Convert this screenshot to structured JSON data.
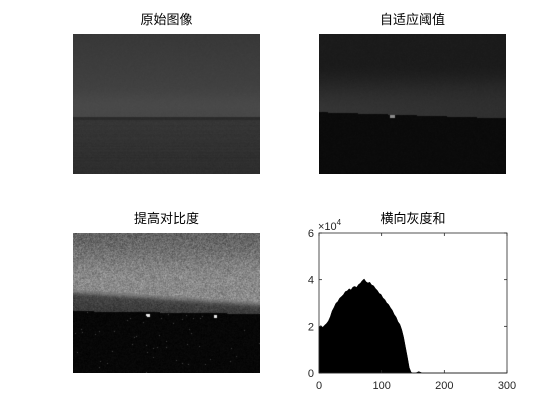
{
  "images": [
    {
      "title": "原始图像"
    },
    {
      "title": "自适应阈值"
    },
    {
      "title": "提高对比度"
    }
  ],
  "chart_data": {
    "type": "area",
    "title": "横向灰度和",
    "xlabel": "",
    "ylabel": "",
    "xlim": [
      0,
      300
    ],
    "ylim": [
      0,
      60000
    ],
    "xticks": [
      0,
      100,
      200,
      300
    ],
    "xtick_labels": [
      "0",
      "100",
      "200",
      "300"
    ],
    "yticks": [
      0,
      20000,
      40000,
      60000
    ],
    "ytick_labels": [
      "0",
      "2",
      "4",
      "6"
    ],
    "y_exponent": {
      "base": "×10",
      "power": "4"
    },
    "grid": false,
    "legend": "none",
    "fill_color": "#000000",
    "x": [
      0,
      3,
      6,
      9,
      12,
      15,
      18,
      21,
      24,
      27,
      30,
      33,
      36,
      39,
      42,
      45,
      48,
      51,
      54,
      57,
      60,
      63,
      66,
      69,
      72,
      75,
      78,
      81,
      84,
      87,
      90,
      93,
      96,
      99,
      102,
      105,
      108,
      111,
      114,
      117,
      120,
      123,
      126,
      129,
      132,
      135,
      138,
      141,
      144,
      147,
      150,
      153,
      156,
      159,
      162,
      165,
      300
    ],
    "y": [
      19800,
      20300,
      19600,
      20500,
      21200,
      22300,
      24100,
      26600,
      28100,
      29900,
      30600,
      32100,
      32800,
      33600,
      34900,
      35200,
      36100,
      35600,
      36800,
      37100,
      36700,
      37900,
      38500,
      39600,
      40300,
      39100,
      38600,
      38900,
      37700,
      37400,
      36200,
      35400,
      34100,
      33700,
      32200,
      31500,
      30100,
      29400,
      28000,
      26900,
      25100,
      24000,
      22000,
      20900,
      18600,
      15400,
      11100,
      6900,
      2300,
      300,
      0,
      0,
      200,
      600,
      300,
      0,
      0
    ]
  }
}
